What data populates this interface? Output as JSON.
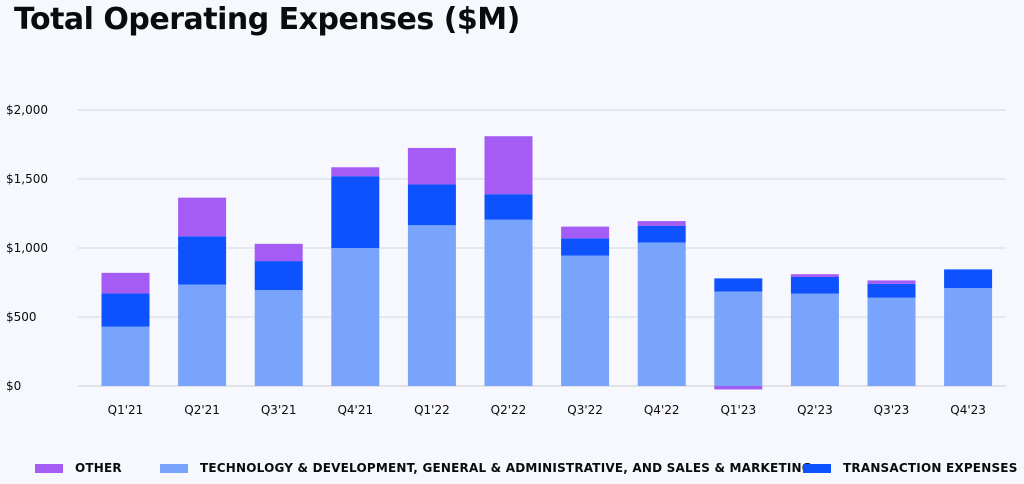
{
  "title": "Total Operating Expenses ($M)",
  "colors": {
    "other": "#a45cf4",
    "tech": "#78a5fb",
    "transaction": "#0d52fc"
  },
  "chart_data": {
    "type": "bar",
    "stacked": true,
    "title": "Total Operating Expenses ($M)",
    "xlabel": "",
    "ylabel": "",
    "ylim": [
      0,
      2000
    ],
    "yticks": [
      0,
      500,
      1000,
      1500,
      2000
    ],
    "ytick_labels": [
      "$0",
      "$500",
      "$1,000",
      "$1,500",
      "$2,000"
    ],
    "grid": true,
    "legend_position": "bottom",
    "categories": [
      "Q1'21",
      "Q2'21",
      "Q3'21",
      "Q4'21",
      "Q1'22",
      "Q2'22",
      "Q3'22",
      "Q4'22",
      "Q1'23",
      "Q2'23",
      "Q3'23",
      "Q4'23"
    ],
    "series": [
      {
        "key": "tech",
        "name": "TECHNOLOGY & DEVELOPMENT, GENERAL & ADMINISTRATIVE, AND SALES & MARKETING",
        "color": "#78a5fb",
        "values": [
          430,
          735,
          695,
          1000,
          1165,
          1205,
          945,
          1040,
          685,
          670,
          640,
          710
        ]
      },
      {
        "key": "transaction",
        "name": "TRANSACTION EXPENSES",
        "color": "#0d52fc",
        "values": [
          240,
          350,
          210,
          520,
          295,
          185,
          125,
          120,
          95,
          120,
          100,
          135
        ]
      },
      {
        "key": "other",
        "name": "OTHER",
        "color": "#a45cf4",
        "values": [
          150,
          280,
          125,
          65,
          265,
          420,
          85,
          35,
          -25,
          20,
          25,
          0
        ]
      }
    ]
  },
  "legend": [
    {
      "key": "other",
      "label": "OTHER",
      "color": "#a45cf4"
    },
    {
      "key": "tech",
      "label": "TECHNOLOGY & DEVELOPMENT, GENERAL & ADMINISTRATIVE, AND SALES & MARKETING",
      "color": "#78a5fb"
    },
    {
      "key": "transaction",
      "label": "TRANSACTION EXPENSES",
      "color": "#0d52fc"
    }
  ]
}
